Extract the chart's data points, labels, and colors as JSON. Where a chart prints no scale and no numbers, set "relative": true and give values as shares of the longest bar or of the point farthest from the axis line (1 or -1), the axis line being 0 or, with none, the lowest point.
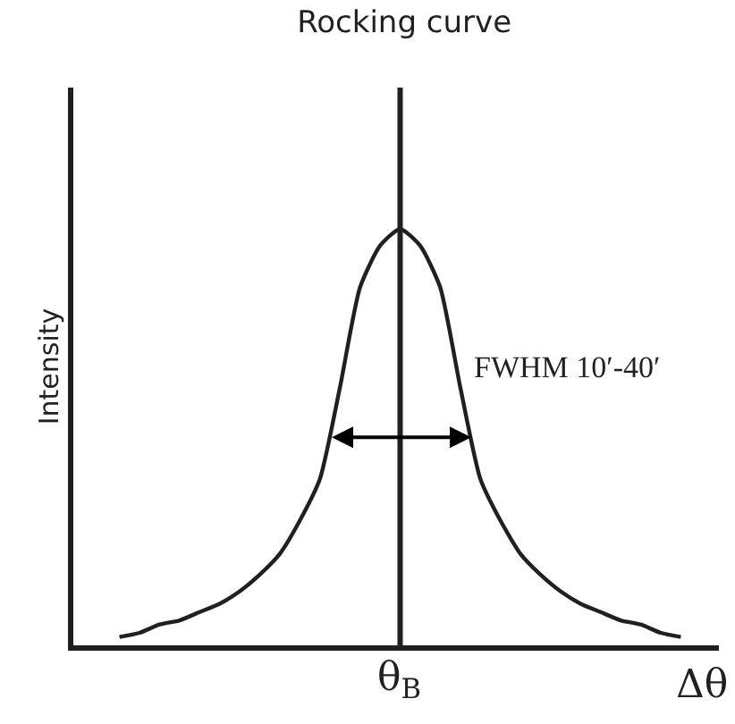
{
  "chart_data": {
    "type": "line",
    "title": "Rocking curve",
    "ylabel": "Intensity",
    "xlabel": "Δθ",
    "relative": true,
    "categories": [
      null,
      null,
      null,
      null,
      null,
      null,
      null,
      null,
      null,
      null,
      null,
      null,
      null,
      null,
      null,
      null,
      null,
      null,
      null,
      null,
      null,
      null,
      null,
      null,
      null,
      null,
      null,
      null,
      null
    ],
    "series": [
      {
        "color": "#231f20",
        "values": [
          0.02,
          0.03,
          0.05,
          0.06,
          0.08,
          0.1,
          0.13,
          0.17,
          0.22,
          0.3,
          0.4,
          0.62,
          0.86,
          0.96,
          1,
          0.96,
          0.86,
          0.62,
          0.4,
          0.3,
          0.22,
          0.17,
          0.13,
          0.1,
          0.08,
          0.06,
          0.05,
          0.03,
          0.02
        ]
      }
    ],
    "ref_lines": [
      {
        "axis": "x",
        "label": "θ$_{B}$",
        "color": "#231f20"
      }
    ],
    "annotations": [
      "FWHM 10′-40′"
    ],
    "marker": "none",
    "line_style": "solid"
  }
}
